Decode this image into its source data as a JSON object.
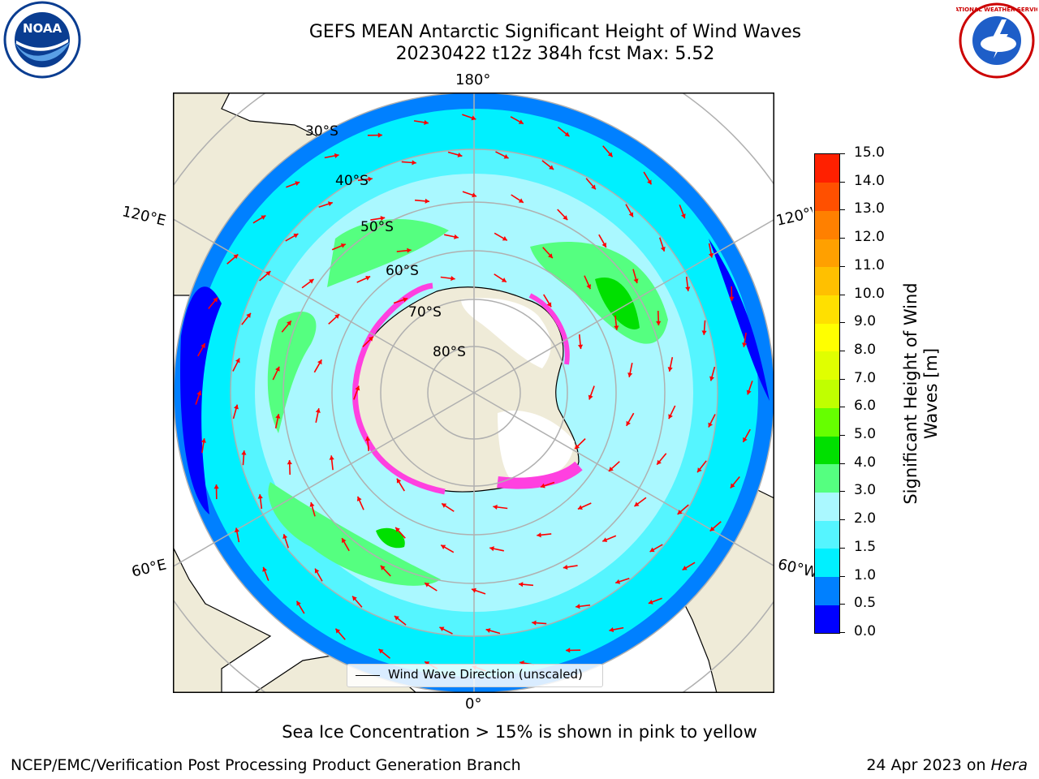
{
  "header": {
    "title_line1": "GEFS MEAN Antarctic Significant Height of Wind Waves",
    "title_line2": "20230422 t12z 384h fcst   Max: 5.52"
  },
  "logos": {
    "left": "NOAA",
    "right": "NATIONAL WEATHER SERVICE"
  },
  "map": {
    "projection": "south polar stereographic",
    "lon_labels": {
      "top": "180°",
      "bottom": "0°",
      "left_upper": "120°E",
      "left_lower": "60°E",
      "right_upper": "120°W",
      "right_lower": "60°W"
    },
    "lat_labels": [
      "30°S",
      "40°S",
      "50°S",
      "60°S",
      "70°S",
      "80°S"
    ],
    "legend_label": "Wind Wave Direction (unscaled)",
    "colors": {
      "land": "#efebd8",
      "ocean_light": "#aaf8ff",
      "ocean_mid": "#00f0ff",
      "ocean_blue": "#0080ff",
      "arrow": "#ff0000",
      "ice": "#ff40e0"
    }
  },
  "colorbar": {
    "title": "Significant Height of Wind Waves [m]",
    "ticks": [
      "0.0",
      "0.5",
      "1.0",
      "1.5",
      "2.0",
      "3.0",
      "4.0",
      "5.0",
      "6.0",
      "7.0",
      "8.0",
      "9.0",
      "10.0",
      "11.0",
      "12.0",
      "13.0",
      "14.0",
      "15.0"
    ],
    "colors": [
      "#0000ff",
      "#0080ff",
      "#00f0ff",
      "#55f5ff",
      "#aaf8ff",
      "#55ff80",
      "#00e000",
      "#66ff00",
      "#c0ff00",
      "#e0ff00",
      "#ffff00",
      "#ffe000",
      "#ffc000",
      "#ffa000",
      "#ff8000",
      "#ff5000",
      "#ff2000"
    ]
  },
  "footer": {
    "caption": "Sea Ice Concentration > 15% is shown in pink to yellow",
    "credit": "NCEP/EMC/Verification Post Processing Product Generation Branch",
    "date_prefix": "24 Apr 2023 on ",
    "machine": "Hera"
  }
}
